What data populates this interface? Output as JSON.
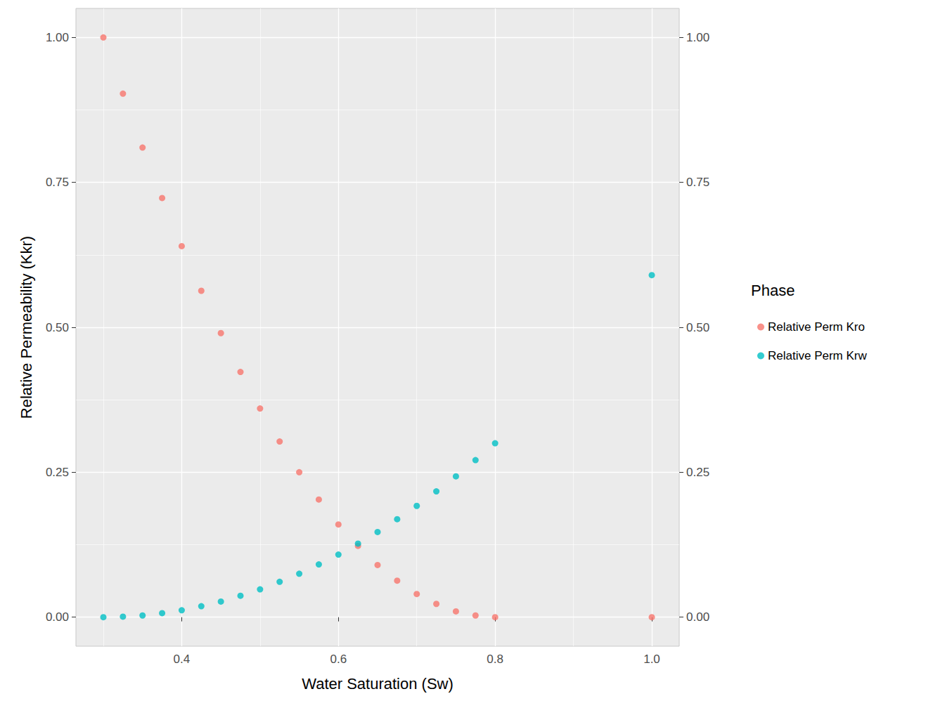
{
  "chart_data": {
    "type": "scatter",
    "x_label": "Water Saturation (Sw)",
    "y_label": "Relative Permeability (Kkr)",
    "legend_title": "Phase",
    "x": [
      0.3,
      0.325,
      0.35,
      0.375,
      0.4,
      0.425,
      0.45,
      0.475,
      0.5,
      0.525,
      0.55,
      0.575,
      0.6,
      0.625,
      0.65,
      0.675,
      0.7,
      0.725,
      0.75,
      0.775,
      0.8,
      1.0
    ],
    "series": [
      {
        "name": "Relative Perm Kro",
        "color": "#F8766D",
        "values": [
          1.0,
          0.903,
          0.81,
          0.723,
          0.64,
          0.563,
          0.49,
          0.423,
          0.36,
          0.303,
          0.25,
          0.203,
          0.16,
          0.123,
          0.09,
          0.063,
          0.04,
          0.023,
          0.01,
          0.003,
          0.0,
          0.0
        ]
      },
      {
        "name": "Relative Perm Krw",
        "color": "#00BFC4",
        "values": [
          0.0,
          0.001,
          0.003,
          0.007,
          0.012,
          0.019,
          0.027,
          0.037,
          0.048,
          0.061,
          0.075,
          0.091,
          0.108,
          0.127,
          0.147,
          0.169,
          0.192,
          0.217,
          0.243,
          0.271,
          0.3,
          0.59
        ]
      }
    ],
    "xlim": [
      0.265,
      1.035
    ],
    "xticks": [
      0.4,
      0.6,
      0.8,
      {
        "value": 1,
        "label": "1.0"
      }
    ],
    "ylim": [
      -0.05,
      1.05
    ],
    "yticks": [
      {
        "value": 0,
        "label": "0.00"
      },
      0.25,
      {
        "value": 0.5,
        "label": "0.50"
      },
      0.75,
      {
        "value": 1,
        "label": "1.00"
      }
    ],
    "y2lim": [
      -0.05,
      1.05
    ],
    "y2ticks": [
      {
        "value": 0,
        "label": "0.00"
      },
      0.25,
      {
        "value": 0.5,
        "label": "0.50"
      },
      0.75,
      {
        "value": 1,
        "label": "1.00"
      }
    ],
    "grid": true,
    "legend": "right",
    "marker": "circle"
  }
}
